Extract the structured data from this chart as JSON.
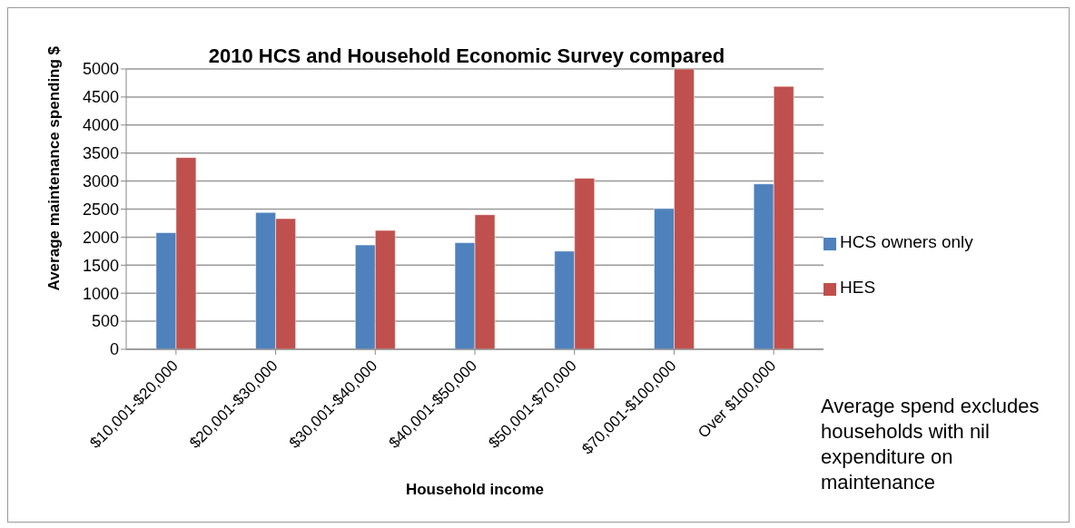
{
  "chart_data": {
    "type": "bar",
    "title": "2010 HCS and Household Economic Survey compared",
    "xlabel": "Household income",
    "ylabel": "Average maintenance  spending $",
    "categories": [
      "$10,001-$20,000",
      "$20,001-$30,000",
      "$30,001-$40,000",
      "$40,001-$50,000",
      "$50,001-$70,000",
      "$70,001-$100,000",
      "Over $100,000"
    ],
    "series": [
      {
        "name": "HCS owners only",
        "color": "#4f81bd",
        "values": [
          2080,
          2440,
          1860,
          1900,
          1750,
          2510,
          2950
        ]
      },
      {
        "name": "HES",
        "color": "#c0504d",
        "values": [
          3420,
          2330,
          2120,
          2400,
          3050,
          5000,
          4690
        ]
      }
    ],
    "ylim": [
      0,
      5000
    ],
    "yticks": [
      0,
      500,
      1000,
      1500,
      2000,
      2500,
      3000,
      3500,
      4000,
      4500,
      5000
    ],
    "grid": "y",
    "legend": "right",
    "annotations": [
      "Average spend excludes households with nil expenditure on maintenance"
    ]
  }
}
